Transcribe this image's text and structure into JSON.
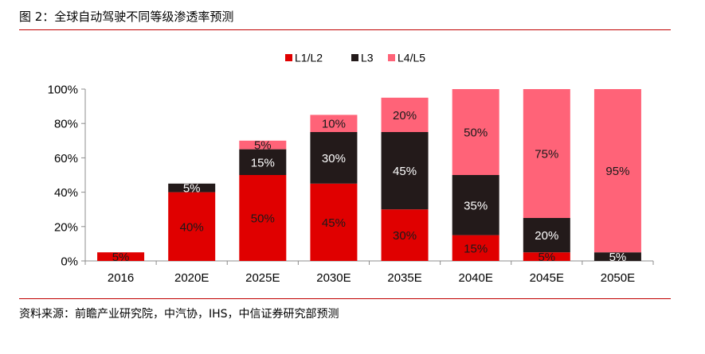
{
  "figure": {
    "title": "图 2：全球自动驾驶不同等级渗透率预测",
    "source": "资料来源：前瞻产业研究院，中汽协，IHS，中信证券研究部预测"
  },
  "chart_data": {
    "type": "bar",
    "stacked": true,
    "categories": [
      "2016",
      "2020E",
      "2025E",
      "2030E",
      "2035E",
      "2040E",
      "2045E",
      "2050E"
    ],
    "series": [
      {
        "name": "L1/L2",
        "color": "#e00000",
        "values": [
          5,
          40,
          50,
          45,
          30,
          15,
          5,
          0
        ],
        "labels": [
          "5%",
          "40%",
          "50%",
          "45%",
          "30%",
          "15%",
          "5%",
          ""
        ]
      },
      {
        "name": "L3",
        "color": "#231a1a",
        "values": [
          0,
          5,
          15,
          30,
          45,
          35,
          20,
          5
        ],
        "labels": [
          "",
          "5%",
          "15%",
          "30%",
          "45%",
          "35%",
          "20%",
          "5%"
        ]
      },
      {
        "name": "L4/L5",
        "color": "#ff6378",
        "values": [
          0,
          0,
          5,
          10,
          20,
          50,
          75,
          95
        ],
        "labels": [
          "",
          "",
          "5%",
          "10%",
          "20%",
          "50%",
          "75%",
          "95%"
        ]
      }
    ],
    "yticks": [
      "0%",
      "20%",
      "40%",
      "60%",
      "80%",
      "100%"
    ],
    "ylim": [
      0,
      100
    ],
    "xlabel": "",
    "ylabel": "",
    "legend_position": "top-center",
    "grid": false
  }
}
